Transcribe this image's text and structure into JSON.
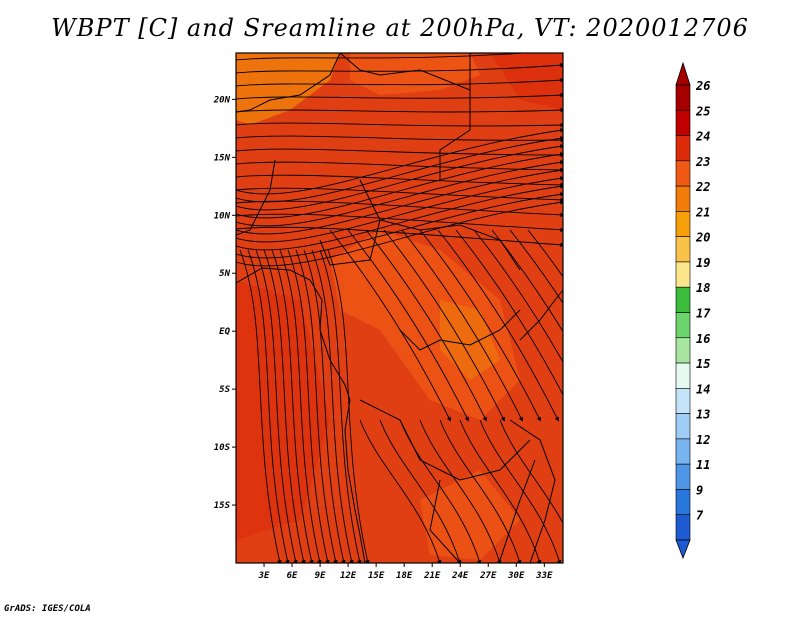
{
  "title": "WBPT [C] and Sreamline at 200hPa, VT: 2020012706",
  "credit": "GrADS: IGES/COLA",
  "map": {
    "lon_range": [
      0,
      35
    ],
    "lat_range": [
      -20,
      24
    ],
    "lat_ticks": [
      {
        "value": 20,
        "label": "20N"
      },
      {
        "value": 15,
        "label": "15N"
      },
      {
        "value": 10,
        "label": "10N"
      },
      {
        "value": 5,
        "label": "5N"
      },
      {
        "value": 0,
        "label": "EQ"
      },
      {
        "value": -5,
        "label": "5S"
      },
      {
        "value": -10,
        "label": "10S"
      },
      {
        "value": -15,
        "label": "15S"
      }
    ],
    "lon_ticks": [
      {
        "value": 3,
        "label": "3E"
      },
      {
        "value": 6,
        "label": "6E"
      },
      {
        "value": 9,
        "label": "9E"
      },
      {
        "value": 12,
        "label": "12E"
      },
      {
        "value": 15,
        "label": "15E"
      },
      {
        "value": 18,
        "label": "18E"
      },
      {
        "value": 21,
        "label": "21E"
      },
      {
        "value": 24,
        "label": "24E"
      },
      {
        "value": 27,
        "label": "27E"
      },
      {
        "value": 30,
        "label": "30E"
      },
      {
        "value": 33,
        "label": "33E"
      }
    ],
    "base_color": "#e03f14"
  },
  "colorbar": {
    "levels": [
      {
        "label": "26",
        "color": "#a50000"
      },
      {
        "label": "25",
        "color": "#c00000"
      },
      {
        "label": "24",
        "color": "#dc2c0c"
      },
      {
        "label": "23",
        "color": "#f05a14"
      },
      {
        "label": "22",
        "color": "#f07c0c"
      },
      {
        "label": "21",
        "color": "#f5a00a"
      },
      {
        "label": "20",
        "color": "#fac24a"
      },
      {
        "label": "19",
        "color": "#fce68c"
      },
      {
        "label": "18",
        "color": "#3cbe3c"
      },
      {
        "label": "17",
        "color": "#6cd46c"
      },
      {
        "label": "16",
        "color": "#a8e6a0"
      },
      {
        "label": "15",
        "color": "#e6faf0"
      },
      {
        "label": "14",
        "color": "#c4e4fa"
      },
      {
        "label": "13",
        "color": "#a0cdf5"
      },
      {
        "label": "12",
        "color": "#78b4f0"
      },
      {
        "label": "11",
        "color": "#5096e6"
      },
      {
        "label": "9",
        "color": "#2878dc"
      },
      {
        "label": "7",
        "color": "#1e5ad2"
      }
    ]
  }
}
